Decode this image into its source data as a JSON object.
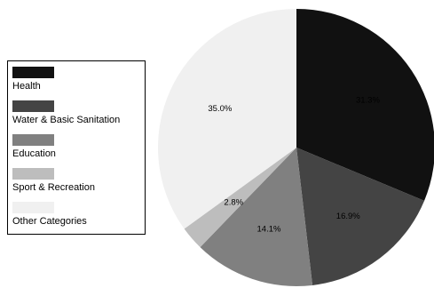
{
  "chart_data": {
    "type": "pie",
    "title": "",
    "legend_position": "left",
    "slices": [
      {
        "name": "Health",
        "value": 31.3,
        "label": "31.3%",
        "color": "#111111",
        "label_color": "#ffffff"
      },
      {
        "name": "Water & Basic Sanitation",
        "value": 16.9,
        "label": "16.9%",
        "color": "#444444",
        "label_color": "#ffffff"
      },
      {
        "name": "Education",
        "value": 14.1,
        "label": "14.1%",
        "color": "#808080",
        "label_color": "#000000"
      },
      {
        "name": "Sport & Recreation",
        "value": 2.8,
        "label": "2.8%",
        "color": "#bdbdbd",
        "label_color": "#000000"
      },
      {
        "name": "Other Categories",
        "value": 35.0,
        "label": "35.0%",
        "color": "#f0f0f0",
        "label_color": "#000000"
      }
    ]
  }
}
